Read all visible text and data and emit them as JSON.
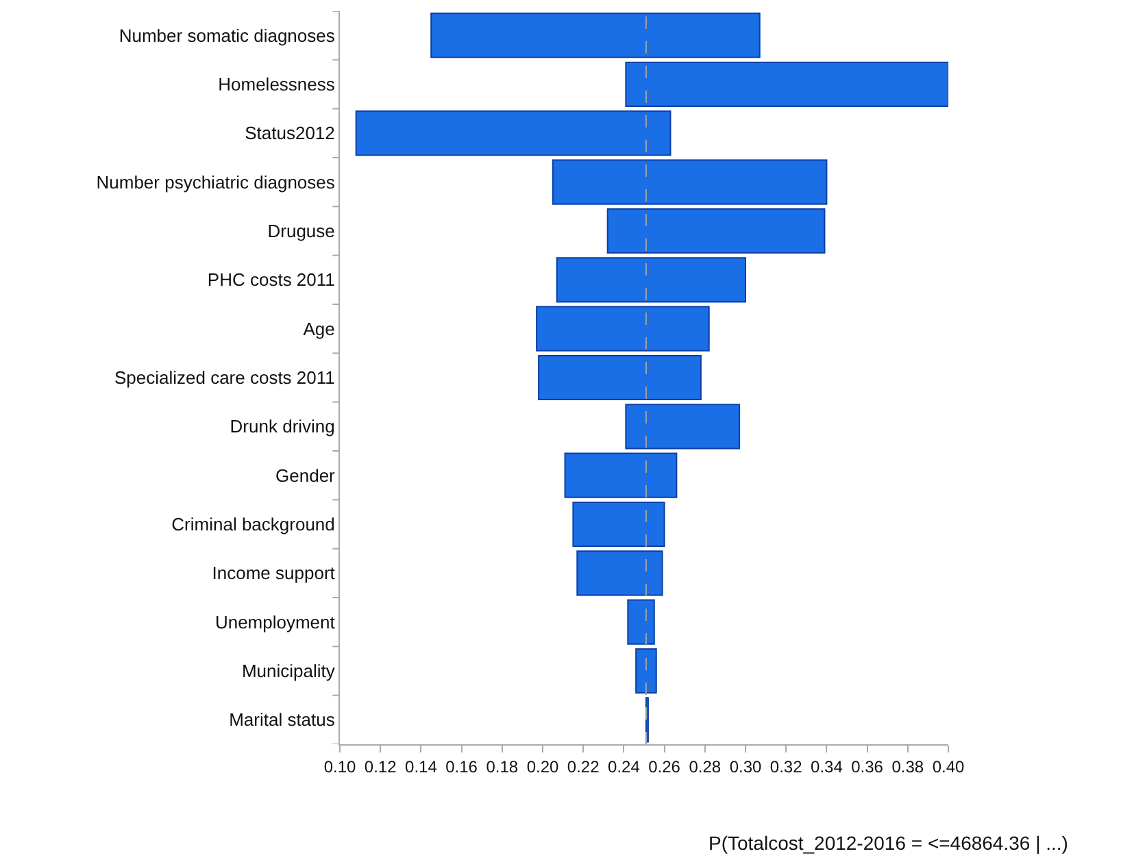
{
  "chart_data": {
    "type": "bar",
    "orientation": "horizontal",
    "xlabel": "P(Totalcost_2012-2016 = <=46864.36 | ...)",
    "categories": [
      "Number somatic diagnoses",
      "Homelessness",
      "Status2012",
      "Number psychiatric diagnoses",
      "Druguse",
      "PHC costs 2011",
      "Age",
      "Specialized care costs 2011",
      "Drunk driving",
      "Gender",
      "Criminal background",
      "Income support",
      "Unemployment",
      "Municipality",
      "Marital status"
    ],
    "base": [
      0.145,
      0.241,
      0.108,
      0.205,
      0.232,
      0.207,
      0.197,
      0.198,
      0.241,
      0.211,
      0.215,
      0.217,
      0.242,
      0.246,
      0.251
    ],
    "values": [
      0.162,
      0.159,
      0.155,
      0.135,
      0.107,
      0.093,
      0.085,
      0.08,
      0.056,
      0.055,
      0.045,
      0.042,
      0.013,
      0.01,
      0.001
    ],
    "color": "#1a6fe6",
    "xlim": [
      0.1,
      0.4
    ],
    "xticks": [
      {
        "value": 0.1,
        "label": "0.10"
      },
      {
        "value": 0.12,
        "label": "0.12"
      },
      {
        "value": 0.14,
        "label": "0.14"
      },
      {
        "value": 0.16,
        "label": "0.16"
      },
      {
        "value": 0.18,
        "label": "0.18"
      },
      {
        "value": 0.2,
        "label": "0.20"
      },
      {
        "value": 0.22,
        "label": "0.22"
      },
      {
        "value": 0.24,
        "label": "0.24"
      },
      {
        "value": 0.26,
        "label": "0.26"
      },
      {
        "value": 0.28,
        "label": "0.28"
      },
      {
        "value": 0.3,
        "label": "0.30"
      },
      {
        "value": 0.32,
        "label": "0.32"
      },
      {
        "value": 0.34,
        "label": "0.34"
      },
      {
        "value": 0.36,
        "label": "0.36"
      },
      {
        "value": 0.38,
        "label": "0.38"
      },
      {
        "value": 0.4,
        "label": "0.40"
      }
    ],
    "ref_lines": [
      {
        "axis": "x",
        "value": 0.251,
        "color": "#a0a0a0",
        "line_style": "dashed"
      }
    ],
    "legend": false
  }
}
